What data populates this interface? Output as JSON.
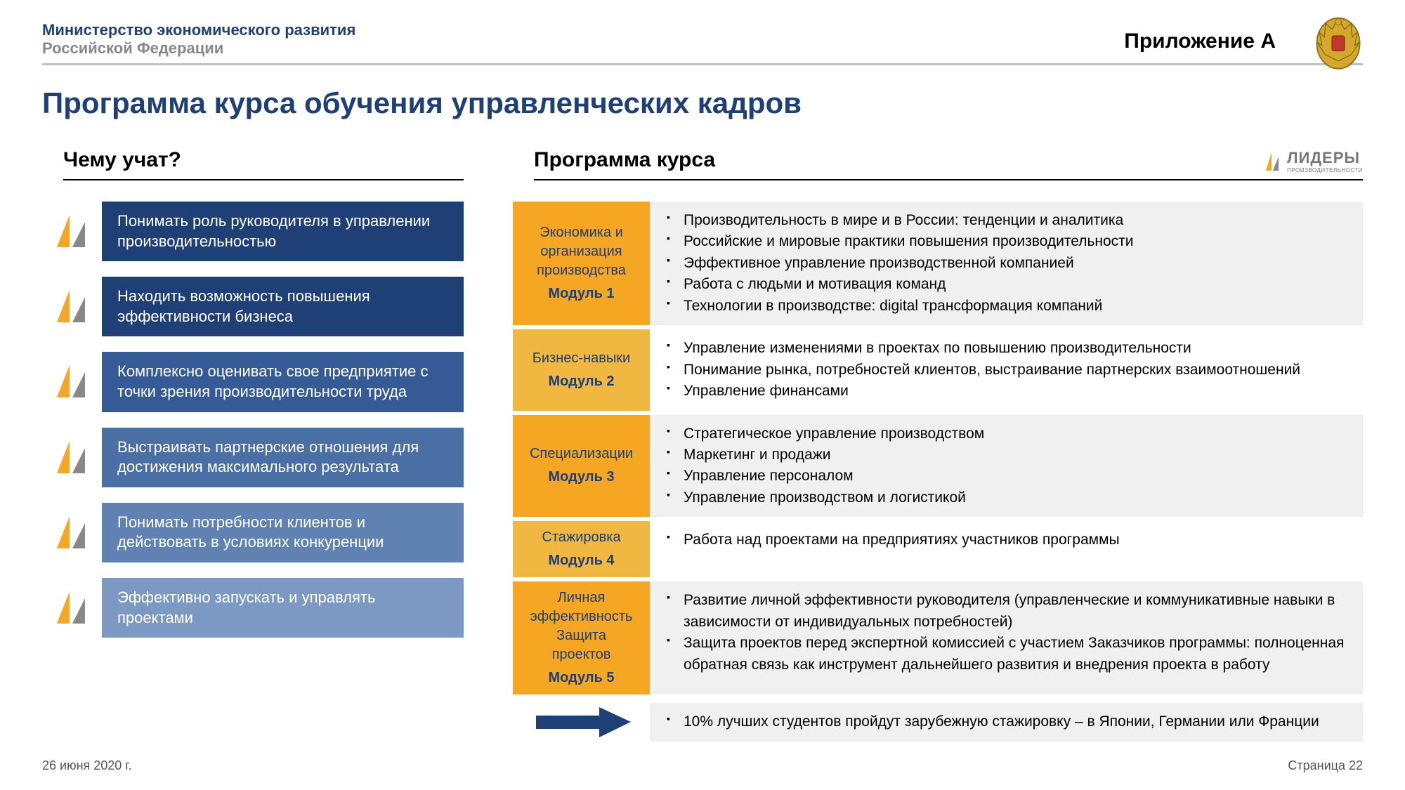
{
  "header": {
    "ministry_line1": "Министерство экономического развития",
    "ministry_line2": "Российской Федерации",
    "appendix": "Приложение А"
  },
  "title": "Программа курса обучения управленческих кадров",
  "left": {
    "heading": "Чему учат?",
    "items": [
      {
        "text": "Понимать роль руководителя в управлении производительностью",
        "bg": "#1f3f77"
      },
      {
        "text": "Находить возможность повышения эффективности бизнеса",
        "bg": "#1f3f77"
      },
      {
        "text": "Комплексно оценивать свое предприятие с точки зрения производительности труда",
        "bg": "#355a96"
      },
      {
        "text": "Выстраивать партнерские отношения для достижения максимального результата",
        "bg": "#4a6fa5"
      },
      {
        "text": "Понимать потребности клиентов и действовать в условиях конкуренции",
        "bg": "#5f82b3"
      },
      {
        "text": "Эффективно запускать и управлять проектами",
        "bg": "#7b99c2"
      }
    ]
  },
  "right": {
    "heading": "Программа курса",
    "modules": [
      {
        "label_lines": [
          "Экономика и",
          "организация",
          "производства"
        ],
        "module_num": "Модуль 1",
        "label_bg": "#f5a623",
        "row_bg": "#f0f0f0",
        "bullets": [
          "Производительность в мире и в России: тенденции и аналитика",
          "Российские и мировые практики повышения производительности",
          "Эффективное управление производственной компанией",
          "Работа с людьми и мотивация команд",
          "Технологии в производстве: digital трансформация компаний"
        ]
      },
      {
        "label_lines": [
          "Бизнес-навыки"
        ],
        "module_num": "Модуль 2",
        "label_bg": "#f0b840",
        "row_bg": "#ffffff",
        "bullets": [
          "Управление изменениями в проектах по повышению производительности",
          "Понимание рынка, потребностей клиентов, выстраивание партнерских взаимоотношений",
          "Управление финансами"
        ]
      },
      {
        "label_lines": [
          "Специализации"
        ],
        "module_num": "Модуль 3",
        "label_bg": "#f5a623",
        "row_bg": "#f0f0f0",
        "bullets": [
          "Стратегическое управление производством",
          "Маркетинг и продажи",
          "Управление персоналом",
          "Управление производством и логистикой"
        ]
      },
      {
        "label_lines": [
          "Стажировка"
        ],
        "module_num": "Модуль 4",
        "label_bg": "#f0b840",
        "row_bg": "#ffffff",
        "bullets": [
          "Работа над проектами на предприятиях участников программы"
        ]
      },
      {
        "label_lines": [
          "Личная",
          "эффективность",
          "Защита",
          "проектов"
        ],
        "module_num": "Модуль 5",
        "label_bg": "#f5a623",
        "row_bg": "#f0f0f0",
        "bullets": [
          "Развитие личной эффективности  руководителя (управленческие и коммуникативные навыки в зависимости от индивидуальных потребностей)",
          "Защита проектов перед экспертной комиссией с участием Заказчиков программы: полноценная обратная связь как инструмент дальнейшего развития  и внедрения проекта в работу"
        ]
      }
    ],
    "final": {
      "row_bg": "#f0f0f0",
      "arrow_color": "#1f3f77",
      "bullets": [
        "10% лучших студентов пройдут зарубежную стажировку – в Японии, Германии или Франции"
      ]
    }
  },
  "brand": {
    "big": "ЛИДЕРЫ",
    "small": "ПРОИЗВОДИТЕЛЬНОСТИ",
    "icon_orange": "#f5a623",
    "icon_gray": "#888888"
  },
  "footer": {
    "date": "26 июня 2020 г.",
    "page": "Страница 22"
  },
  "colors": {
    "icon_orange": "#f5a623",
    "icon_gray": "#888888",
    "navy": "#1f3f77"
  }
}
